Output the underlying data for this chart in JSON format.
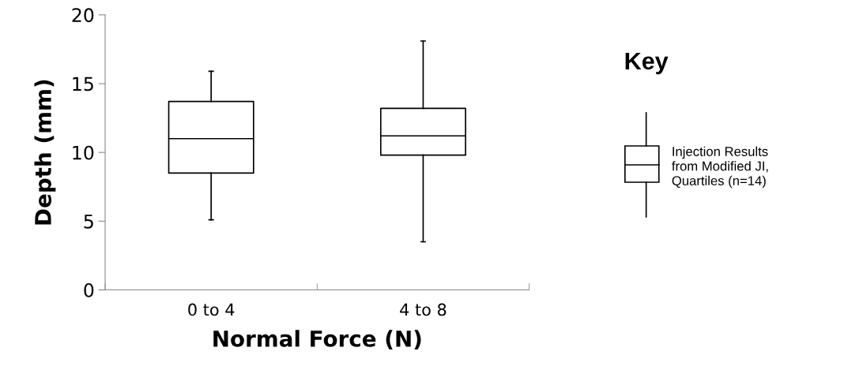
{
  "chart_data": {
    "type": "box",
    "xlabel": "Normal Force (N)",
    "ylabel": "Depth (mm)",
    "categories": [
      "0 to 4",
      "4 to 8"
    ],
    "boxes": [
      {
        "low": 5.1,
        "q1": 8.5,
        "median": 11.0,
        "q3": 13.7,
        "high": 15.9
      },
      {
        "low": 3.5,
        "q1": 9.8,
        "median": 11.2,
        "q3": 13.2,
        "high": 18.1
      }
    ],
    "ylim": [
      0,
      20
    ],
    "yticks": [
      0,
      5,
      10,
      15,
      20
    ],
    "grid": false,
    "annotations": [
      "Key",
      "Injection Results\nfrom Modified JI,\nQuartiles (n=14)"
    ]
  }
}
